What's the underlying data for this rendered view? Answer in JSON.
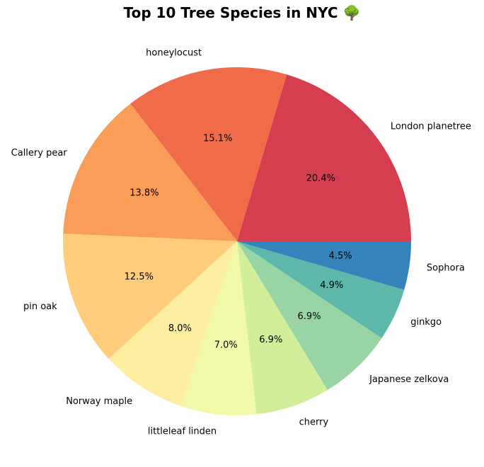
{
  "chart_data": {
    "type": "pie",
    "title": "Top 10 Tree Species in NYC 🌳",
    "labels": [
      "London planetree",
      "honeylocust",
      "Callery pear",
      "pin oak",
      "Norway maple",
      "littleleaf linden",
      "cherry",
      "Japanese zelkova",
      "ginkgo",
      "Sophora"
    ],
    "values": [
      20.4,
      15.1,
      13.8,
      12.5,
      8.0,
      7.0,
      6.9,
      6.9,
      4.9,
      4.5
    ],
    "percent_labels": [
      "20.4%",
      "15.1%",
      "13.8%",
      "12.5%",
      "8.0%",
      "7.0%",
      "6.9%",
      "6.9%",
      "4.9%",
      "4.5%"
    ],
    "colors": [
      "#d53e4f",
      "#f06b48",
      "#f99d59",
      "#fecc7a",
      "#feeea2",
      "#f1f9a9",
      "#d3ee9a",
      "#99d5a4",
      "#5db7aa",
      "#3682ba"
    ],
    "start_angle_deg": 0,
    "direction": "counterclockwise",
    "legend": "none"
  }
}
